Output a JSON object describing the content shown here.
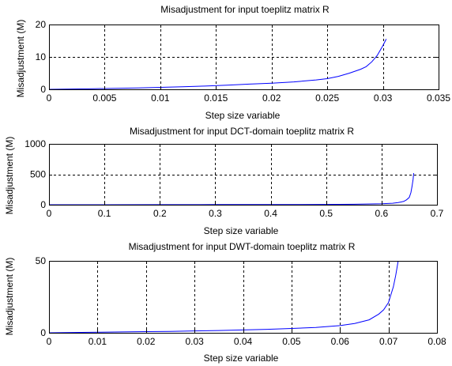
{
  "figure": {
    "background": "#ffffff",
    "line_color": "#0000ff",
    "axis_color": "#000000",
    "grid_style": "dashed"
  },
  "chart_data": [
    {
      "type": "line",
      "title": "Misadjustment for input toeplitz matrix R",
      "xlabel": "Step size variable",
      "ylabel": "Misadjustment (M)",
      "xlim": [
        0,
        0.035
      ],
      "ylim": [
        0,
        20
      ],
      "xticks": [
        0,
        0.005,
        0.01,
        0.015,
        0.02,
        0.025,
        0.03,
        0.035
      ],
      "xtick_labels": [
        "0",
        "0.005",
        "0.01",
        "0.015",
        "0.02",
        "0.025",
        "0.03",
        "0.035"
      ],
      "yticks": [
        0,
        10,
        20
      ],
      "ytick_labels": [
        "0",
        "10",
        "20"
      ],
      "grid": true,
      "series": [
        {
          "color": "#0000ff",
          "x": [
            0,
            0.002,
            0.004,
            0.006,
            0.008,
            0.01,
            0.012,
            0.014,
            0.016,
            0.018,
            0.02,
            0.022,
            0.024,
            0.025,
            0.026,
            0.027,
            0.028,
            0.0285,
            0.029,
            0.0295,
            0.03,
            0.0303
          ],
          "y": [
            0,
            0.1,
            0.2,
            0.3,
            0.45,
            0.6,
            0.8,
            1.0,
            1.3,
            1.6,
            1.9,
            2.3,
            2.9,
            3.3,
            4.0,
            5.0,
            6.2,
            7.0,
            8.5,
            10.5,
            13.5,
            15.5
          ]
        }
      ]
    },
    {
      "type": "line",
      "title": "Misadjustment for input DCT-domain toeplitz matrix R",
      "xlabel": "Step size variable",
      "ylabel": "Misadjustment (M)",
      "xlim": [
        0,
        0.7
      ],
      "ylim": [
        0,
        1000
      ],
      "xticks": [
        0,
        0.1,
        0.2,
        0.3,
        0.4,
        0.5,
        0.6,
        0.7
      ],
      "xtick_labels": [
        "0",
        "0.1",
        "0.2",
        "0.3",
        "0.4",
        "0.5",
        "0.6",
        "0.7"
      ],
      "yticks": [
        0,
        500,
        1000
      ],
      "ytick_labels": [
        "0",
        "500",
        "1000"
      ],
      "grid": true,
      "series": [
        {
          "color": "#0000ff",
          "x": [
            0,
            0.1,
            0.2,
            0.3,
            0.4,
            0.5,
            0.55,
            0.6,
            0.62,
            0.63,
            0.64,
            0.645,
            0.65,
            0.653,
            0.655,
            0.657,
            0.658
          ],
          "y": [
            0,
            0.5,
            1,
            2,
            3,
            5,
            8,
            15,
            25,
            35,
            55,
            80,
            120,
            200,
            300,
            420,
            520
          ]
        }
      ]
    },
    {
      "type": "line",
      "title": "Misadjustment for input DWT-domain toeplitz matrix R",
      "xlabel": "Step size variable",
      "ylabel": "Misadjustment (M)",
      "xlim": [
        0,
        0.08
      ],
      "ylim": [
        0,
        50
      ],
      "xticks": [
        0,
        0.01,
        0.02,
        0.03,
        0.04,
        0.05,
        0.06,
        0.07,
        0.08
      ],
      "xtick_labels": [
        "0",
        "0.01",
        "0.02",
        "0.03",
        "0.04",
        "0.05",
        "0.06",
        "0.07",
        "0.08"
      ],
      "yticks": [
        0,
        50
      ],
      "ytick_labels": [
        "0",
        "50"
      ],
      "grid": true,
      "series": [
        {
          "color": "#0000ff",
          "x": [
            0,
            0.005,
            0.01,
            0.015,
            0.02,
            0.025,
            0.03,
            0.035,
            0.04,
            0.045,
            0.05,
            0.055,
            0.06,
            0.063,
            0.066,
            0.068,
            0.069,
            0.07,
            0.071,
            0.0715,
            0.072
          ],
          "y": [
            0,
            0.2,
            0.4,
            0.6,
            0.8,
            1.0,
            1.3,
            1.6,
            2.0,
            2.4,
            3.0,
            3.7,
            5.0,
            6.5,
            9.0,
            13,
            16,
            21,
            32,
            40,
            50
          ]
        }
      ]
    }
  ]
}
